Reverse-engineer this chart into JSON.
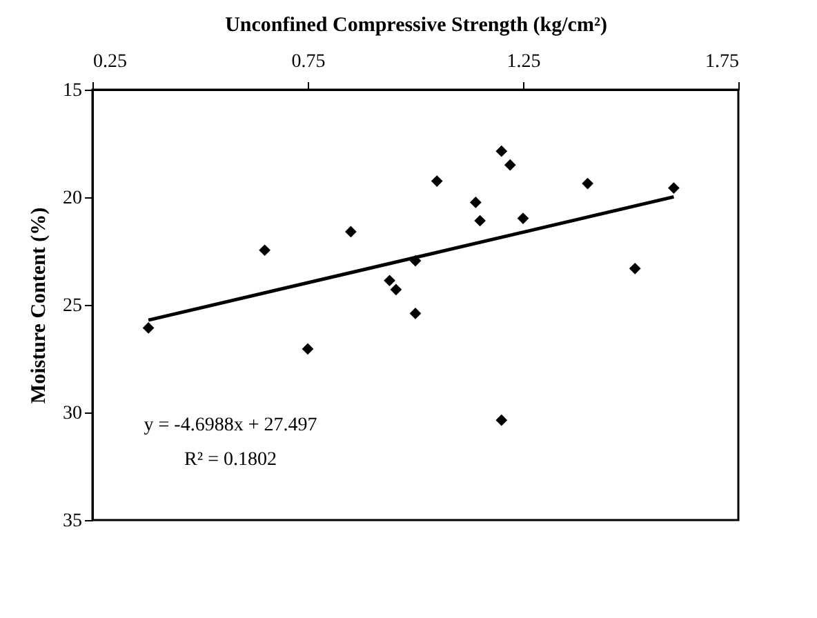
{
  "chart_data": {
    "type": "scatter",
    "xlabel": "Unconfined Compressive Strength (kg/cm²)",
    "ylabel": "Moisture Content (%)",
    "xlim": [
      0.25,
      1.75
    ],
    "xticks": [
      0.25,
      0.75,
      1.25,
      1.75
    ],
    "ylim": [
      35,
      15
    ],
    "yticks": [
      15,
      20,
      25,
      30,
      35
    ],
    "grid": false,
    "marker": "diamond",
    "series": [
      {
        "color": "#000000",
        "x": [
          0.38,
          0.65,
          0.75,
          0.85,
          1.05,
          1.14,
          1.15,
          1.2,
          1.22,
          1.25,
          1.4,
          1.6,
          1.0,
          0.94,
          0.955,
          1.0,
          1.51,
          1.2
        ],
        "values": [
          26.07,
          22.46,
          27.05,
          21.6,
          19.25,
          20.24,
          21.09,
          17.86,
          18.5,
          20.98,
          19.36,
          19.57,
          22.95,
          23.87,
          24.29,
          25.4,
          23.31,
          30.36
        ]
      },
      {
        "type": "line",
        "color": "#000000",
        "marker": "none",
        "x": [
          0.38,
          1.6
        ],
        "values": [
          25.71,
          19.98
        ]
      }
    ],
    "annotations": [
      "y = -4.6988x + 27.497",
      "R² = 0.1802"
    ]
  }
}
